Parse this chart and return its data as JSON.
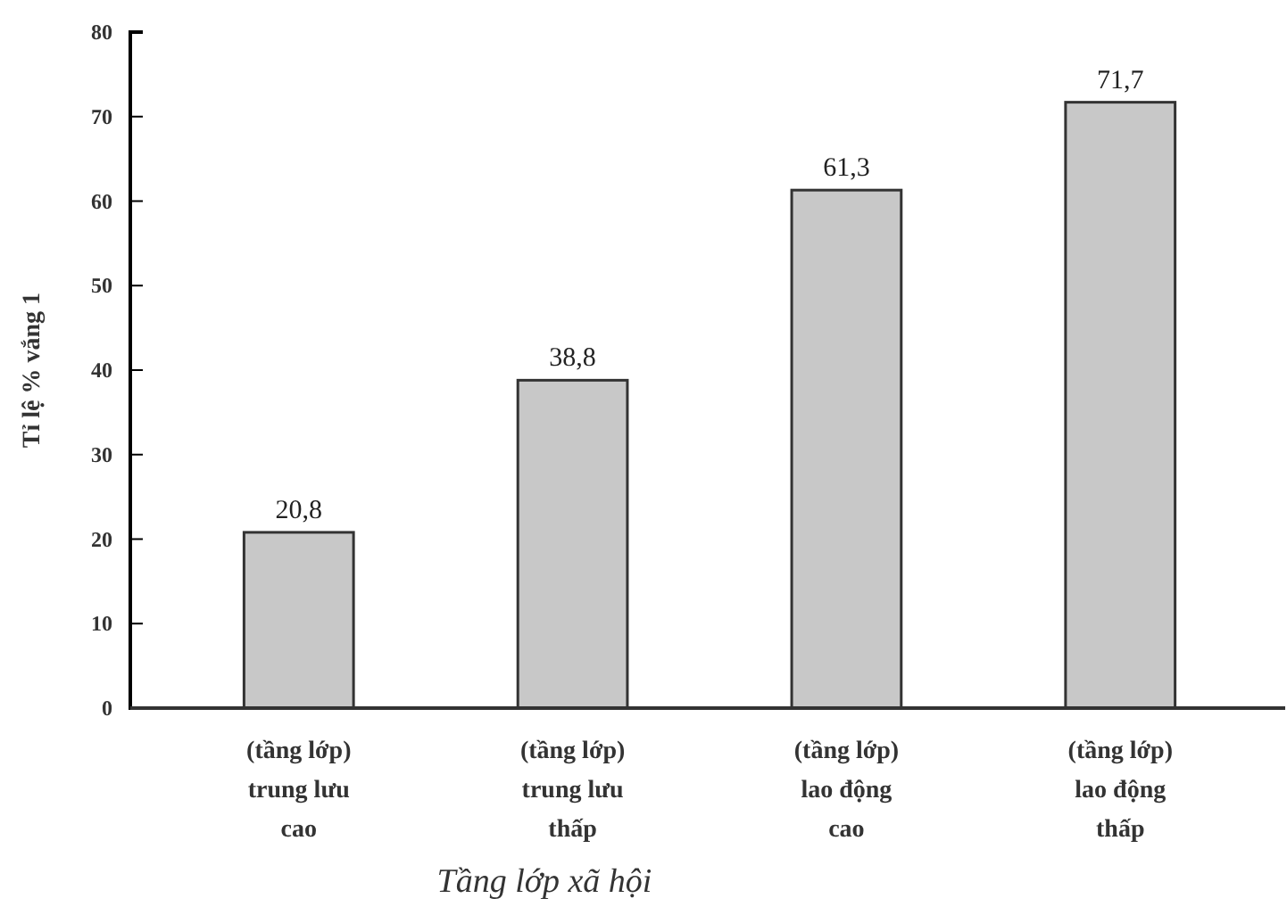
{
  "chart_data": {
    "type": "bar",
    "xlabel": "Tầng lớp xã hội",
    "ylabel": "Tỉ lệ % vắng 1",
    "categories": [
      "(tầng lớp)\ntrung lưu\ncao",
      "(tầng lớp)\ntrung lưu\nthấp",
      "(tầng lớp)\nlao động\ncao",
      "(tầng lớp)\nlao động\nthấp"
    ],
    "values": [
      20.8,
      38.8,
      61.3,
      71.7
    ],
    "value_labels": [
      "20,8",
      "38,8",
      "61,3",
      "71,7"
    ],
    "color": "#c8c8c8",
    "ylim": [
      0,
      80
    ],
    "yticks": [
      0,
      10,
      20,
      30,
      40,
      50,
      60,
      70,
      80
    ]
  }
}
